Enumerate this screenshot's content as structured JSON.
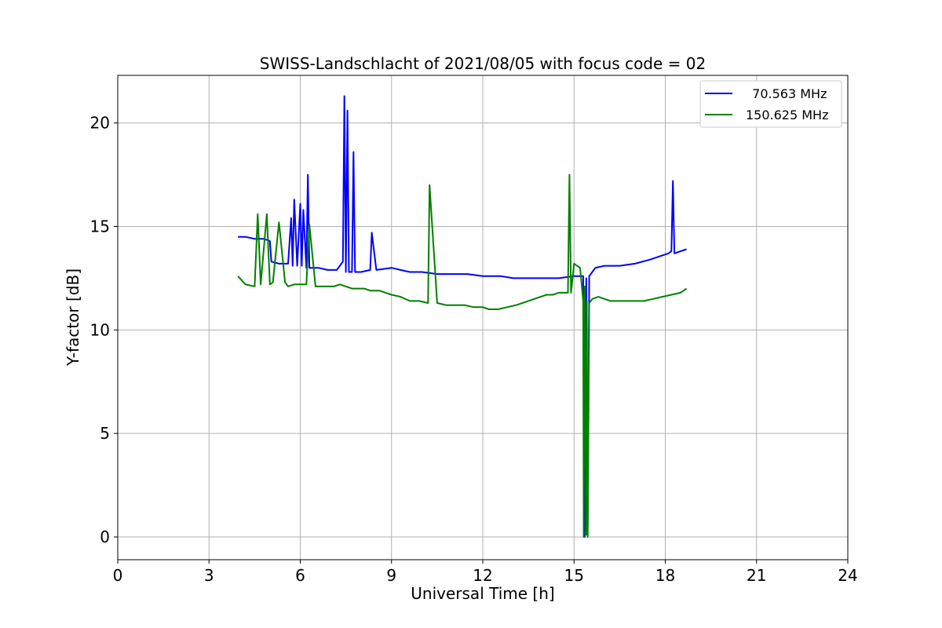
{
  "chart_data": {
    "type": "line",
    "title": "SWISS-Landschlacht of 2021/08/05 with focus code = 02",
    "xlabel": "Universal Time [h]",
    "ylabel": "Y-factor [dB]",
    "xlim": [
      0,
      24
    ],
    "ylim": [
      -1.1,
      22.3
    ],
    "xticks": [
      0,
      3,
      6,
      9,
      12,
      15,
      18,
      21,
      24
    ],
    "yticks": [
      0,
      5,
      10,
      15,
      20
    ],
    "grid": true,
    "legend_position": "top-right",
    "series": [
      {
        "name": "  70.563 MHz",
        "color": "#0000ff",
        "x": [
          3.95,
          4.2,
          4.5,
          4.8,
          5.0,
          5.05,
          5.3,
          5.6,
          5.7,
          5.75,
          5.8,
          5.9,
          6.0,
          6.05,
          6.1,
          6.2,
          6.25,
          6.3,
          6.6,
          6.9,
          7.2,
          7.4,
          7.45,
          7.5,
          7.55,
          7.6,
          7.7,
          7.75,
          7.8,
          8.0,
          8.3,
          8.35,
          8.5,
          9.0,
          9.3,
          9.6,
          10.0,
          10.5,
          11.0,
          11.5,
          12.0,
          12.3,
          12.6,
          13.0,
          13.5,
          14.0,
          14.5,
          15.0,
          15.25,
          15.3,
          15.35,
          15.4,
          15.45,
          15.5,
          15.7,
          16.0,
          16.5,
          17.0,
          17.5,
          17.9,
          18.1,
          18.2,
          18.25,
          18.3,
          18.5,
          18.7
        ],
        "y": [
          14.5,
          14.5,
          14.4,
          14.4,
          14.3,
          13.3,
          13.2,
          13.2,
          15.4,
          13.1,
          16.3,
          13.1,
          16.1,
          13.1,
          15.8,
          13.0,
          17.5,
          13.0,
          13.0,
          12.9,
          12.9,
          13.3,
          21.3,
          12.8,
          20.6,
          12.8,
          12.8,
          18.6,
          12.8,
          12.8,
          12.9,
          14.7,
          12.9,
          13.0,
          12.9,
          12.8,
          12.8,
          12.7,
          12.7,
          12.7,
          12.6,
          12.6,
          12.6,
          12.5,
          12.5,
          12.5,
          12.5,
          12.6,
          12.6,
          12.6,
          0.0,
          12.5,
          0.5,
          12.6,
          13.0,
          13.1,
          13.1,
          13.2,
          13.4,
          13.6,
          13.7,
          13.8,
          17.2,
          13.7,
          13.8,
          13.9
        ]
      },
      {
        "name": "150.625 MHz",
        "color": "#008000",
        "x": [
          3.95,
          4.2,
          4.5,
          4.6,
          4.7,
          4.9,
          5.0,
          5.1,
          5.3,
          5.5,
          5.6,
          5.8,
          6.0,
          6.2,
          6.3,
          6.5,
          6.7,
          6.9,
          7.1,
          7.3,
          7.5,
          7.7,
          7.9,
          8.1,
          8.3,
          8.6,
          8.8,
          9.0,
          9.3,
          9.6,
          9.9,
          10.2,
          10.25,
          10.5,
          10.8,
          11.1,
          11.4,
          11.7,
          12.0,
          12.2,
          12.5,
          12.8,
          13.1,
          13.5,
          13.9,
          14.1,
          14.3,
          14.5,
          14.7,
          14.8,
          14.85,
          14.9,
          15.0,
          15.2,
          15.3,
          15.32,
          15.35,
          15.4,
          15.42,
          15.45,
          15.5,
          15.6,
          15.8,
          16.0,
          16.2,
          16.5,
          16.8,
          17.0,
          17.3,
          17.6,
          17.9,
          18.2,
          18.5,
          18.7
        ],
        "y": [
          12.6,
          12.2,
          12.1,
          15.6,
          12.2,
          15.6,
          12.2,
          12.3,
          15.2,
          12.3,
          12.1,
          12.2,
          12.2,
          12.2,
          15.1,
          12.1,
          12.1,
          12.1,
          12.1,
          12.2,
          12.1,
          12.0,
          12.0,
          12.0,
          11.9,
          11.9,
          11.8,
          11.7,
          11.6,
          11.4,
          11.4,
          11.3,
          17.0,
          11.3,
          11.2,
          11.2,
          11.2,
          11.1,
          11.1,
          11.0,
          11.0,
          11.1,
          11.2,
          11.4,
          11.6,
          11.7,
          11.7,
          11.8,
          11.8,
          11.8,
          17.5,
          11.8,
          13.2,
          13.0,
          11.4,
          0.0,
          12.1,
          0.1,
          11.4,
          0.0,
          11.3,
          11.5,
          11.6,
          11.5,
          11.4,
          11.4,
          11.4,
          11.4,
          11.4,
          11.5,
          11.6,
          11.7,
          11.8,
          12.0
        ]
      }
    ]
  }
}
